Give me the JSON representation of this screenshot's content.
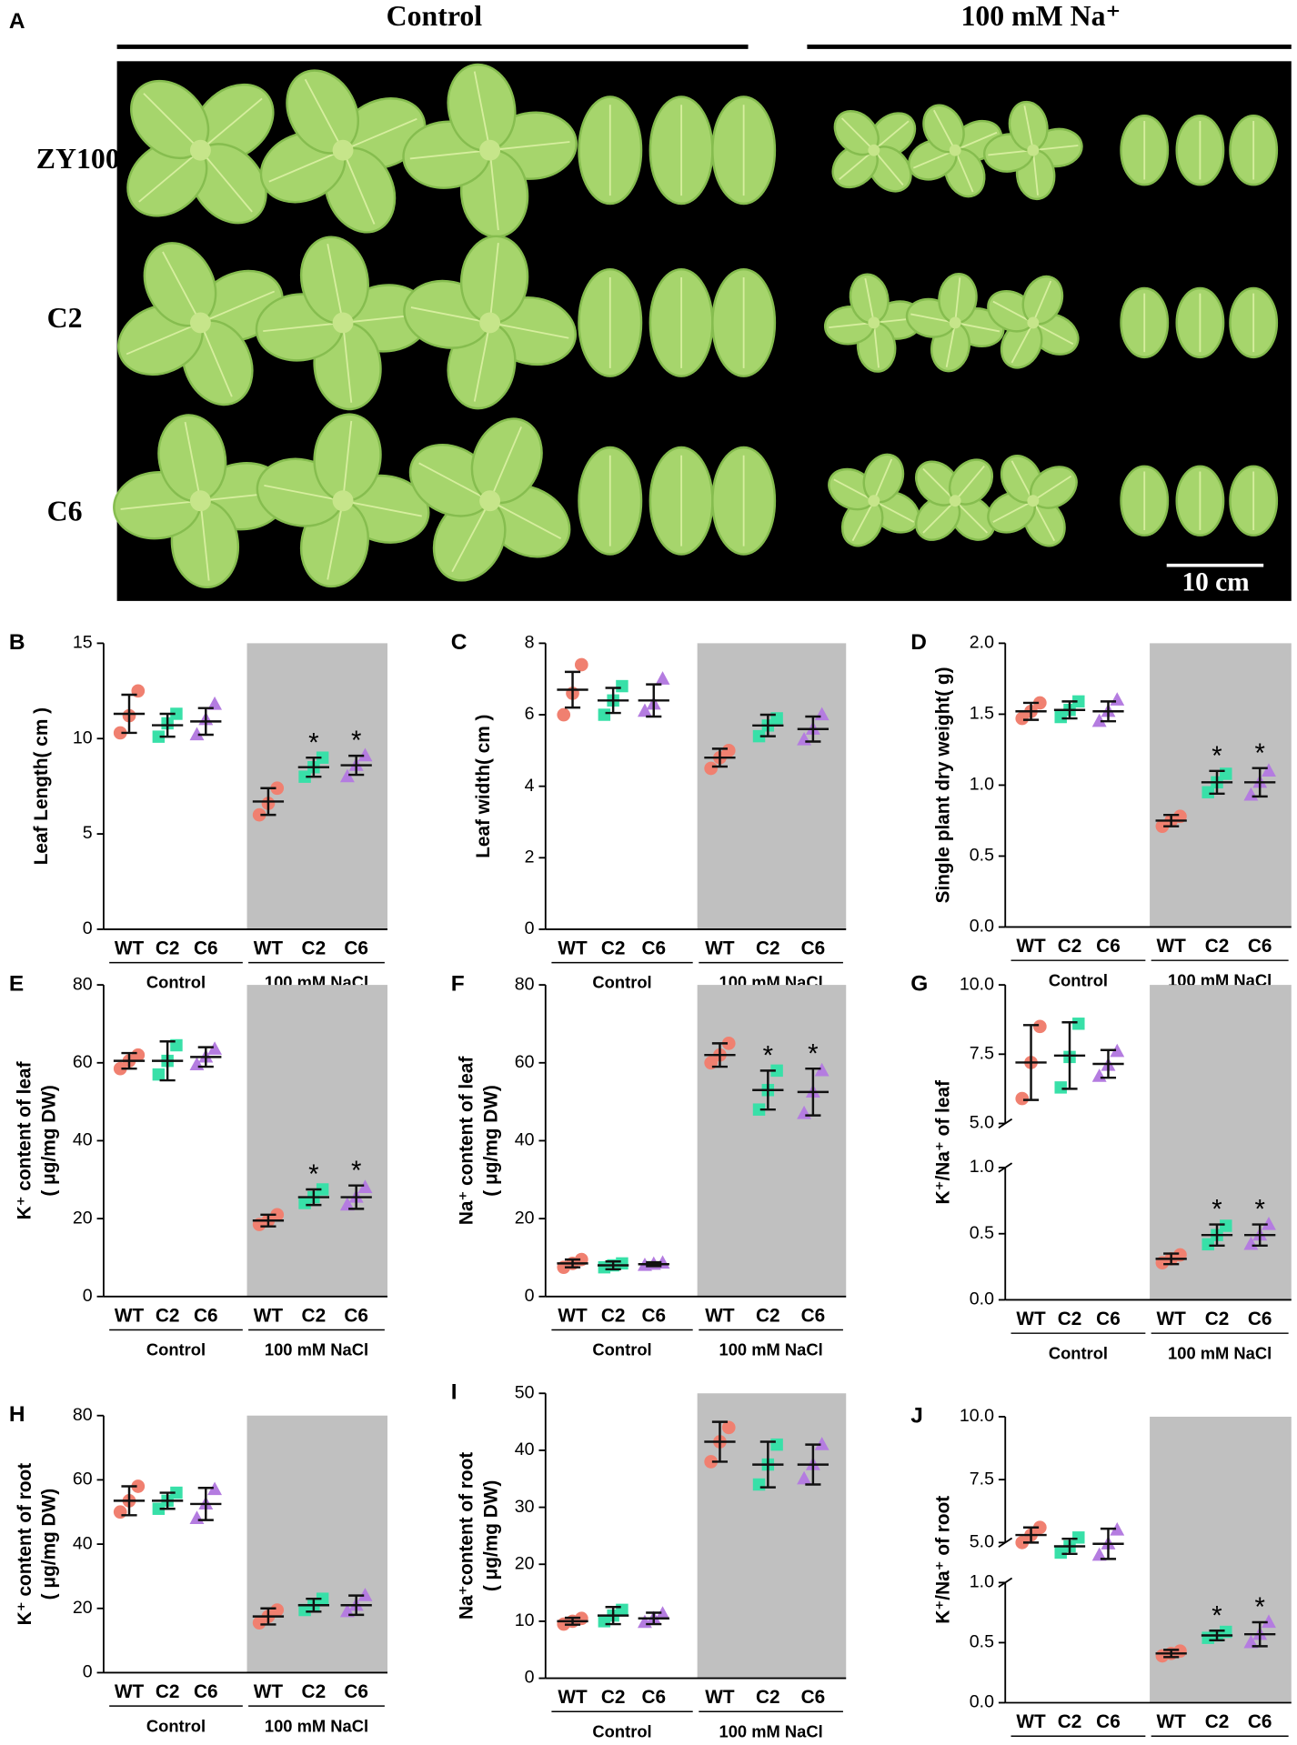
{
  "panel_a": {
    "panel": "A",
    "conditions": [
      "Control",
      "100 mM Na⁺"
    ],
    "lines": [
      "ZY100",
      "C2",
      "C6"
    ],
    "scale_bar": "10 cm"
  },
  "chart_data": [
    {
      "type": "dot",
      "panel": "B",
      "ylabel": "Leaf Length( cm )",
      "categories": [
        "WT",
        "C2",
        "C6",
        "WT",
        "C2",
        "C6"
      ],
      "groups": [
        "Control",
        "100 mM NaCl"
      ],
      "shaded_group": 1,
      "colors": [
        "#f08070",
        "#38e0a8",
        "#b47ce0",
        "#f08070",
        "#38e0a8",
        "#b47ce0"
      ],
      "markers": [
        "circle",
        "square",
        "triangle",
        "circle",
        "square",
        "triangle"
      ],
      "ylim": [
        0,
        15
      ],
      "yticks": [
        0,
        5,
        10,
        15
      ],
      "means": [
        11.3,
        10.7,
        10.9,
        6.7,
        8.5,
        8.6
      ],
      "errors": [
        1.0,
        0.6,
        0.7,
        0.7,
        0.5,
        0.5
      ],
      "points": [
        [
          10.3,
          11.2,
          12.5
        ],
        [
          10.1,
          10.8,
          11.3
        ],
        [
          10.2,
          11.0,
          11.8
        ],
        [
          6.0,
          6.6,
          7.4
        ],
        [
          8.0,
          8.5,
          9.0
        ],
        [
          8.0,
          8.6,
          9.1
        ]
      ],
      "significance": [
        null,
        null,
        null,
        null,
        "*",
        "*"
      ]
    },
    {
      "type": "dot",
      "panel": "C",
      "ylabel": "Leaf width( cm )",
      "categories": [
        "WT",
        "C2",
        "C6",
        "WT",
        "C2",
        "C6"
      ],
      "groups": [
        "Control",
        "100 mM NaCl"
      ],
      "shaded_group": 1,
      "colors": [
        "#f08070",
        "#38e0a8",
        "#b47ce0",
        "#f08070",
        "#38e0a8",
        "#b47ce0"
      ],
      "markers": [
        "circle",
        "square",
        "triangle",
        "circle",
        "square",
        "triangle"
      ],
      "ylim": [
        0,
        8
      ],
      "yticks": [
        0,
        2,
        4,
        6,
        8
      ],
      "means": [
        6.7,
        6.4,
        6.4,
        4.8,
        5.7,
        5.6
      ],
      "errors": [
        0.5,
        0.35,
        0.45,
        0.25,
        0.3,
        0.35
      ],
      "points": [
        [
          6.0,
          6.6,
          7.4
        ],
        [
          6.0,
          6.4,
          6.8
        ],
        [
          6.1,
          6.3,
          7.0
        ],
        [
          4.5,
          4.8,
          5.0
        ],
        [
          5.4,
          5.7,
          5.9
        ],
        [
          5.3,
          5.6,
          6.0
        ]
      ]
    },
    {
      "type": "dot",
      "panel": "D",
      "ylabel": "Single plant dry weight( g)",
      "categories": [
        "WT",
        "C2",
        "C6",
        "WT",
        "C2",
        "C6"
      ],
      "groups": [
        "Control",
        "100 mM NaCl"
      ],
      "shaded_group": 1,
      "colors": [
        "#f08070",
        "#38e0a8",
        "#b47ce0",
        "#f08070",
        "#38e0a8",
        "#b47ce0"
      ],
      "markers": [
        "circle",
        "square",
        "triangle",
        "circle",
        "square",
        "triangle"
      ],
      "ylim": [
        0,
        2
      ],
      "yticks": [
        {
          "value": 0,
          "label": "0.0"
        },
        0.5,
        {
          "value": 1,
          "label": "1.0"
        },
        1.5,
        {
          "value": 2,
          "label": "2.0"
        }
      ],
      "means": [
        1.52,
        1.53,
        1.52,
        0.75,
        1.02,
        1.02
      ],
      "errors": [
        0.06,
        0.06,
        0.07,
        0.04,
        0.08,
        0.1
      ],
      "points": [
        [
          1.47,
          1.52,
          1.58
        ],
        [
          1.48,
          1.53,
          1.59
        ],
        [
          1.45,
          1.52,
          1.6
        ],
        [
          0.71,
          0.75,
          0.78
        ],
        [
          0.95,
          1.02,
          1.08
        ],
        [
          0.93,
          1.02,
          1.1
        ]
      ],
      "significance": [
        null,
        null,
        null,
        null,
        "*",
        "*"
      ]
    },
    {
      "type": "dot",
      "panel": "E",
      "ylabel": "K⁺ content of leaf",
      "ylabel_unit": "( μg/mg DW)",
      "categories": [
        "WT",
        "C2",
        "C6",
        "WT",
        "C2",
        "C6"
      ],
      "groups": [
        "Control",
        "100 mM NaCl"
      ],
      "shaded_group": 1,
      "colors": [
        "#f08070",
        "#38e0a8",
        "#b47ce0",
        "#f08070",
        "#38e0a8",
        "#b47ce0"
      ],
      "markers": [
        "circle",
        "square",
        "triangle",
        "circle",
        "square",
        "triangle"
      ],
      "ylim": [
        0,
        80
      ],
      "yticks": [
        0,
        20,
        40,
        60,
        80
      ],
      "means": [
        60.5,
        60.5,
        61.5,
        19.5,
        25.5,
        25.5
      ],
      "errors": [
        2,
        5,
        2.5,
        1.5,
        2,
        3
      ],
      "points": [
        [
          58.5,
          60.5,
          62
        ],
        [
          57,
          60.5,
          64.5
        ],
        [
          59.5,
          61.5,
          63.5
        ],
        [
          18.5,
          19.5,
          21
        ],
        [
          24,
          25.5,
          27.5
        ],
        [
          23.5,
          25.5,
          28
        ]
      ],
      "significance": [
        null,
        null,
        null,
        null,
        "*",
        "*"
      ]
    },
    {
      "type": "dot",
      "panel": "F",
      "ylabel": "Na⁺ content of leaf",
      "ylabel_unit": "( μg/mg DW)",
      "categories": [
        "WT",
        "C2",
        "C6",
        "WT",
        "C2",
        "C6"
      ],
      "groups": [
        "Control",
        "100 mM NaCl"
      ],
      "shaded_group": 1,
      "colors": [
        "#f08070",
        "#38e0a8",
        "#b47ce0",
        "#f08070",
        "#38e0a8",
        "#b47ce0"
      ],
      "markers": [
        "circle",
        "square",
        "triangle",
        "circle",
        "square",
        "triangle"
      ],
      "ylim": [
        0,
        80
      ],
      "yticks": [
        0,
        20,
        40,
        60,
        80
      ],
      "means": [
        8.5,
        8,
        8.3,
        62,
        53,
        52.5
      ],
      "errors": [
        1,
        1,
        0.5,
        3,
        5,
        6
      ],
      "points": [
        [
          7.5,
          8.5,
          9.5
        ],
        [
          7.5,
          8,
          8.5
        ],
        [
          8,
          8.3,
          8.6
        ],
        [
          60,
          62,
          65
        ],
        [
          48,
          53,
          58
        ],
        [
          47,
          52.5,
          58
        ]
      ],
      "significance": [
        null,
        null,
        null,
        null,
        "*",
        "*"
      ]
    },
    {
      "type": "dot",
      "panel": "G",
      "ylabel": "K⁺/Na⁺ of leaf",
      "categories": [
        "WT",
        "C2",
        "C6",
        "WT",
        "C2",
        "C6"
      ],
      "groups": [
        "Control",
        "100 mM NaCl"
      ],
      "shaded_group": 1,
      "colors": [
        "#f08070",
        "#38e0a8",
        "#b47ce0",
        "#f08070",
        "#38e0a8",
        "#b47ce0"
      ],
      "markers": [
        "circle",
        "square",
        "triangle",
        "circle",
        "square",
        "triangle"
      ],
      "segments": [
        {
          "ylim": [
            0,
            1
          ],
          "yticks": [
            {
              "value": 0,
              "label": "0.0"
            },
            0.5,
            {
              "value": 1,
              "label": "1.0"
            }
          ]
        },
        {
          "ylim": [
            5,
            10
          ],
          "yticks": [
            {
              "value": 5,
              "label": "5.0"
            },
            7.5,
            {
              "value": 10,
              "label": "10.0"
            }
          ]
        }
      ],
      "means": [
        7.2,
        7.45,
        7.15,
        0.31,
        0.49,
        0.49
      ],
      "errors": [
        1.35,
        1.2,
        0.5,
        0.04,
        0.08,
        0.08
      ],
      "points": [
        [
          5.9,
          7.2,
          8.5
        ],
        [
          6.3,
          7.4,
          8.6
        ],
        [
          6.7,
          7.1,
          7.6
        ],
        [
          0.28,
          0.31,
          0.34
        ],
        [
          0.42,
          0.49,
          0.56
        ],
        [
          0.42,
          0.49,
          0.57
        ]
      ],
      "significance": [
        null,
        null,
        null,
        null,
        "*",
        "*"
      ]
    },
    {
      "type": "dot",
      "panel": "H",
      "ylabel": "K⁺ content of root",
      "ylabel_unit": "( μg/mg DW)",
      "categories": [
        "WT",
        "C2",
        "C6",
        "WT",
        "C2",
        "C6"
      ],
      "groups": [
        "Control",
        "100 mM NaCl"
      ],
      "shaded_group": 1,
      "colors": [
        "#f08070",
        "#38e0a8",
        "#b47ce0",
        "#f08070",
        "#38e0a8",
        "#b47ce0"
      ],
      "markers": [
        "circle",
        "square",
        "triangle",
        "circle",
        "square",
        "triangle"
      ],
      "ylim": [
        0,
        80
      ],
      "yticks": [
        0,
        20,
        40,
        60,
        80
      ],
      "means": [
        53.5,
        53.5,
        52.5,
        17.5,
        21,
        21
      ],
      "errors": [
        4.5,
        2.5,
        5,
        2.5,
        2,
        3
      ],
      "points": [
        [
          50,
          53.5,
          58
        ],
        [
          51,
          53.5,
          56
        ],
        [
          48,
          52.5,
          57
        ],
        [
          15.5,
          17.5,
          19.5
        ],
        [
          19.5,
          21,
          23
        ],
        [
          19,
          21,
          24
        ]
      ]
    },
    {
      "type": "dot",
      "panel": "I",
      "ylabel": "Na⁺content of root",
      "ylabel_unit": "( μg/mg DW)",
      "categories": [
        "WT",
        "C2",
        "C6",
        "WT",
        "C2",
        "C6"
      ],
      "groups": [
        "Control",
        "100 mM NaCl"
      ],
      "shaded_group": 1,
      "colors": [
        "#f08070",
        "#38e0a8",
        "#b47ce0",
        "#f08070",
        "#38e0a8",
        "#b47ce0"
      ],
      "markers": [
        "circle",
        "square",
        "triangle",
        "circle",
        "square",
        "triangle"
      ],
      "ylim": [
        0,
        50
      ],
      "yticks": [
        0,
        10,
        20,
        30,
        40,
        50
      ],
      "means": [
        10,
        11,
        10.5,
        41.5,
        37.5,
        37.5
      ],
      "errors": [
        0.6,
        1.5,
        1,
        3.5,
        4,
        3.5
      ],
      "points": [
        [
          9.5,
          10,
          10.5
        ],
        [
          10,
          11,
          12
        ],
        [
          9.8,
          10.5,
          11.3
        ],
        [
          38,
          41.5,
          44
        ],
        [
          34,
          37.5,
          41
        ],
        [
          35,
          37.5,
          41
        ]
      ]
    },
    {
      "type": "dot",
      "panel": "J",
      "ylabel": "K⁺/Na⁺ of root",
      "categories": [
        "WT",
        "C2",
        "C6",
        "WT",
        "C2",
        "C6"
      ],
      "groups": [
        "Control",
        "100 mM NaCl"
      ],
      "shaded_group": 1,
      "colors": [
        "#f08070",
        "#38e0a8",
        "#b47ce0",
        "#f08070",
        "#38e0a8",
        "#b47ce0"
      ],
      "markers": [
        "circle",
        "square",
        "triangle",
        "circle",
        "square",
        "triangle"
      ],
      "segments": [
        {
          "ylim": [
            0,
            1
          ],
          "yticks": [
            {
              "value": 0,
              "label": "0.0"
            },
            0.5,
            {
              "value": 1,
              "label": "1.0"
            }
          ]
        },
        {
          "ylim": [
            5,
            10
          ],
          "yticks": [
            {
              "value": 5,
              "label": "5.0"
            },
            7.5,
            {
              "value": 10,
              "label": "10.0"
            }
          ]
        }
      ],
      "means": [
        5.3,
        4.85,
        4.95,
        0.41,
        0.56,
        0.57
      ],
      "errors": [
        0.3,
        0.3,
        0.6,
        0.03,
        0.04,
        0.1
      ],
      "points": [
        [
          5.0,
          5.3,
          5.6
        ],
        [
          4.6,
          4.85,
          5.2
        ],
        [
          4.5,
          4.95,
          5.5
        ],
        [
          0.39,
          0.41,
          0.43
        ],
        [
          0.54,
          0.56,
          0.59
        ],
        [
          0.5,
          0.57,
          0.67
        ]
      ],
      "significance": [
        null,
        null,
        null,
        null,
        "*",
        "*"
      ]
    }
  ]
}
